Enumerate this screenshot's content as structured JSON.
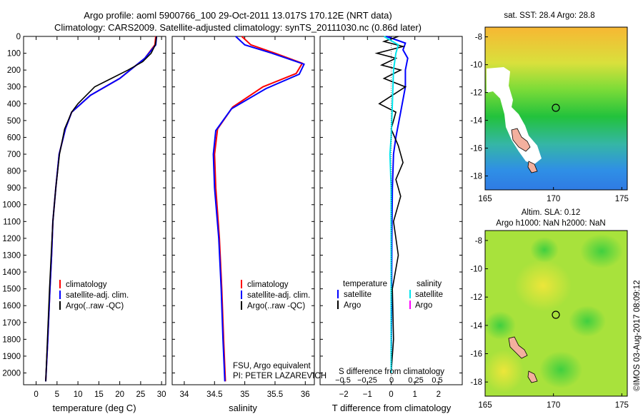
{
  "header": {
    "line1": "Argo profile: aoml 5900766_100 29-Oct-2011 13.017S 170.12E (NRT data)",
    "line2": "Climatology: CARS2009. Satellite-adjusted climatology: synTS_20111030.nc (0.86d later)"
  },
  "colors": {
    "climatology": "#ff0000",
    "satellite": "#0000ff",
    "argo": "#000000",
    "sat_salinity": "#00e5ee",
    "argo_salinity": "#ff00ff"
  },
  "panels": {
    "temperature": {
      "xlabel": "temperature (deg C)",
      "legend": [
        "climatology",
        "satellite-adj. clim.",
        "Argo(..raw -QC)"
      ]
    },
    "salinity": {
      "xlabel": "salinity",
      "legend": [
        "climatology",
        "satellite-adj. clim.",
        "Argo(..raw -QC)"
      ],
      "note1": "FSU, Argo equivalent",
      "note2": "PI: PETER LAZAREVICH"
    },
    "difference": {
      "xlabel_top": "S difference from climatology",
      "xlabel_bottom": "T difference from climatology",
      "s_ticks": [
        "−0.5",
        "−0.25",
        "0",
        "0.25",
        "0.5"
      ],
      "legend_t_title": "temperature",
      "legend_s_title": "salinity",
      "legend_items": [
        "satellite",
        "Argo",
        "satellite",
        "Argo"
      ]
    },
    "sst_map": {
      "title": "sat. SST: 28.4 Argo: 28.8"
    },
    "sla_map": {
      "title1": "Altim. SLA: 0.12",
      "title2": "Argo h1000: NaN h2000: NaN"
    }
  },
  "side_label": "©IMOS 03-Aug-2017 08:09:12",
  "chart_data": [
    {
      "type": "line",
      "title": "",
      "xlabel": "temperature (deg C)",
      "ylabel": "",
      "xlim": [
        -3,
        31
      ],
      "ylim": [
        2070,
        0
      ],
      "xticks": [
        0,
        5,
        10,
        15,
        20,
        25,
        30
      ],
      "yticks": [
        0,
        100,
        200,
        300,
        400,
        500,
        600,
        700,
        800,
        900,
        1000,
        1100,
        1200,
        1300,
        1400,
        1500,
        1600,
        1700,
        1800,
        1900,
        2000
      ],
      "series": [
        {
          "name": "climatology",
          "x": [
            28.6,
            28.4,
            26,
            20,
            13,
            8.5,
            7.0,
            5.5,
            4.7,
            4.0,
            3.7,
            3.3,
            2.8,
            2.3
          ],
          "y": [
            0,
            50,
            130,
            250,
            350,
            450,
            550,
            700,
            900,
            1100,
            1300,
            1500,
            1800,
            2050
          ]
        },
        {
          "name": "satellite-adj. clim.",
          "x": [
            28.8,
            28.6,
            26,
            20,
            13,
            8.5,
            7.0,
            5.5,
            4.7,
            4.0,
            3.7,
            3.3,
            2.8,
            2.3
          ],
          "y": [
            0,
            50,
            130,
            250,
            350,
            450,
            550,
            700,
            900,
            1100,
            1300,
            1500,
            1800,
            2050
          ]
        },
        {
          "name": "Argo(..raw -QC)",
          "x": [
            28.8,
            28.5,
            27.5,
            25.5,
            22,
            18,
            14,
            10,
            8.5,
            6.8,
            5.6,
            4.7,
            4.0,
            3.6,
            3.2,
            2.7,
            2.3
          ],
          "y": [
            0,
            50,
            100,
            150,
            200,
            250,
            300,
            400,
            450,
            550,
            700,
            900,
            1100,
            1300,
            1500,
            1800,
            2050
          ]
        }
      ]
    },
    {
      "type": "line",
      "title": "",
      "xlabel": "salinity",
      "ylabel": "",
      "xlim": [
        33.8,
        36.15
      ],
      "ylim": [
        2070,
        0
      ],
      "xticks": [
        34,
        34.5,
        35,
        35.5,
        36
      ],
      "series": [
        {
          "name": "climatology",
          "x": [
            34.95,
            35.1,
            35.5,
            35.95,
            35.85,
            35.3,
            34.8,
            34.55,
            34.5,
            34.52,
            34.58,
            34.62,
            34.65,
            34.68
          ],
          "y": [
            0,
            50,
            100,
            160,
            220,
            300,
            420,
            550,
            700,
            900,
            1200,
            1500,
            1800,
            2050
          ]
        },
        {
          "name": "satellite-adj. clim.",
          "x": [
            34.85,
            35.0,
            35.45,
            35.98,
            35.9,
            35.35,
            34.78,
            34.52,
            34.48,
            34.5,
            34.57,
            34.61,
            34.64,
            34.67
          ],
          "y": [
            0,
            50,
            100,
            165,
            225,
            310,
            430,
            560,
            700,
            900,
            1200,
            1500,
            1800,
            2050
          ]
        }
      ]
    },
    {
      "type": "line",
      "title": "",
      "xlabel": "T difference from climatology",
      "ylabel": "",
      "xlim": [
        -3,
        3
      ],
      "ylim": [
        2070,
        0
      ],
      "xticks": [
        -2,
        -1,
        0,
        1,
        2
      ],
      "series": [
        {
          "name": "temperature satellite",
          "x": [
            -0.2,
            0.6,
            0.5,
            0.7,
            0.6,
            0.6,
            0.4,
            0.2,
            0.1,
            0.05,
            0.03,
            0.02,
            0.0
          ],
          "y": [
            0,
            40,
            80,
            130,
            200,
            300,
            450,
            600,
            700,
            900,
            1200,
            1500,
            2000
          ]
        },
        {
          "name": "temperature Argo",
          "x": [
            0.3,
            -0.3,
            0.5,
            -0.6,
            0.2,
            -0.4,
            0.4,
            -0.3,
            0.6,
            -0.5,
            0.2,
            0.0,
            0.3,
            0.5,
            0.2,
            0.4,
            0.1,
            0.3,
            0.05,
            0.1,
            0.0
          ],
          "y": [
            0,
            30,
            60,
            100,
            130,
            170,
            200,
            250,
            300,
            400,
            450,
            550,
            650,
            750,
            850,
            950,
            1100,
            1300,
            1500,
            1800,
            2000
          ]
        },
        {
          "name": "salinity satellite",
          "x": [
            -0.3,
            0.3,
            0.2,
            0.1,
            0.05,
            0.0,
            -0.05,
            0.0,
            0.0,
            0.0
          ],
          "y": [
            0,
            50,
            100,
            200,
            400,
            600,
            700,
            900,
            1300,
            2000
          ]
        }
      ]
    }
  ],
  "map_axes": {
    "lon_ticks": [
      "165",
      "170",
      "175"
    ],
    "lat_ticks": [
      "-8",
      "-10",
      "-12",
      "-14",
      "-16",
      "-18"
    ]
  }
}
